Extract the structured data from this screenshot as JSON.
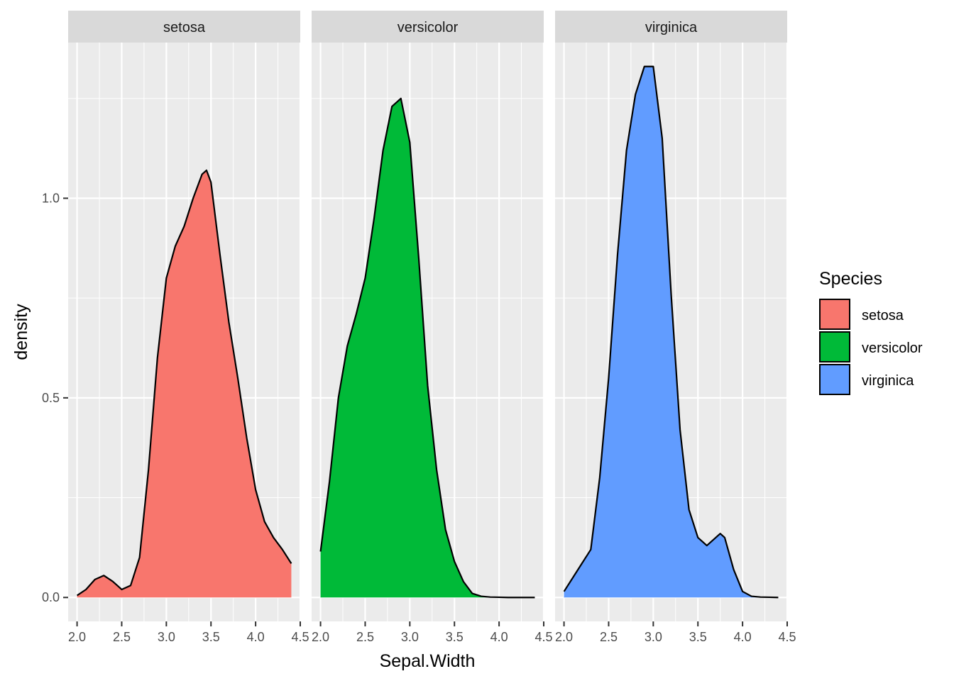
{
  "chart_data": {
    "type": "area",
    "subtype": "faceted-density",
    "title": "",
    "xlabel": "Sepal.Width",
    "ylabel": "density",
    "xlim": [
      1.9,
      4.5
    ],
    "ylim": [
      -0.06,
      1.39
    ],
    "x_ticks": [
      2.0,
      2.5,
      3.0,
      3.5,
      4.0,
      4.5
    ],
    "x_tick_labels": [
      "2.0",
      "2.5",
      "3.0",
      "3.5",
      "4.0",
      "4.5"
    ],
    "y_ticks": [
      0.0,
      0.5,
      1.0
    ],
    "y_tick_labels": [
      "0.0",
      "0.5",
      "1.0"
    ],
    "grid": true,
    "legend": {
      "title": "Species",
      "placement": "right",
      "entries": [
        "setosa",
        "versicolor",
        "virginica"
      ]
    },
    "facets": [
      {
        "name": "setosa",
        "color": "#F8766D",
        "x": [
          2.0,
          2.1,
          2.2,
          2.3,
          2.4,
          2.5,
          2.6,
          2.7,
          2.8,
          2.9,
          3.0,
          3.1,
          3.2,
          3.3,
          3.4,
          3.45,
          3.5,
          3.6,
          3.7,
          3.8,
          3.9,
          4.0,
          4.1,
          4.2,
          4.3,
          4.4
        ],
        "y": [
          0.005,
          0.02,
          0.045,
          0.055,
          0.04,
          0.02,
          0.03,
          0.1,
          0.32,
          0.6,
          0.8,
          0.88,
          0.93,
          1.0,
          1.06,
          1.07,
          1.04,
          0.86,
          0.69,
          0.55,
          0.4,
          0.27,
          0.19,
          0.15,
          0.12,
          0.085
        ]
      },
      {
        "name": "versicolor",
        "color": "#00BA38",
        "x": [
          2.0,
          2.1,
          2.2,
          2.3,
          2.4,
          2.5,
          2.6,
          2.7,
          2.8,
          2.9,
          3.0,
          3.1,
          3.2,
          3.3,
          3.4,
          3.5,
          3.6,
          3.7,
          3.8,
          3.9,
          4.0,
          4.1,
          4.2,
          4.3,
          4.4
        ],
        "y": [
          0.115,
          0.29,
          0.5,
          0.63,
          0.71,
          0.8,
          0.95,
          1.12,
          1.23,
          1.25,
          1.14,
          0.85,
          0.53,
          0.32,
          0.17,
          0.09,
          0.04,
          0.01,
          0.003,
          0.001,
          0.0005,
          0.0,
          0.0,
          0.0,
          0.0
        ]
      },
      {
        "name": "virginica",
        "color": "#619CFF",
        "x": [
          2.0,
          2.1,
          2.2,
          2.3,
          2.4,
          2.5,
          2.6,
          2.7,
          2.8,
          2.9,
          3.0,
          3.1,
          3.2,
          3.3,
          3.4,
          3.5,
          3.6,
          3.7,
          3.75,
          3.8,
          3.9,
          4.0,
          4.1,
          4.2,
          4.3,
          4.4
        ],
        "y": [
          0.015,
          0.05,
          0.085,
          0.12,
          0.3,
          0.55,
          0.86,
          1.12,
          1.26,
          1.33,
          1.33,
          1.15,
          0.76,
          0.42,
          0.22,
          0.15,
          0.13,
          0.15,
          0.16,
          0.15,
          0.07,
          0.015,
          0.003,
          0.001,
          0.0005,
          0.0
        ]
      }
    ]
  }
}
